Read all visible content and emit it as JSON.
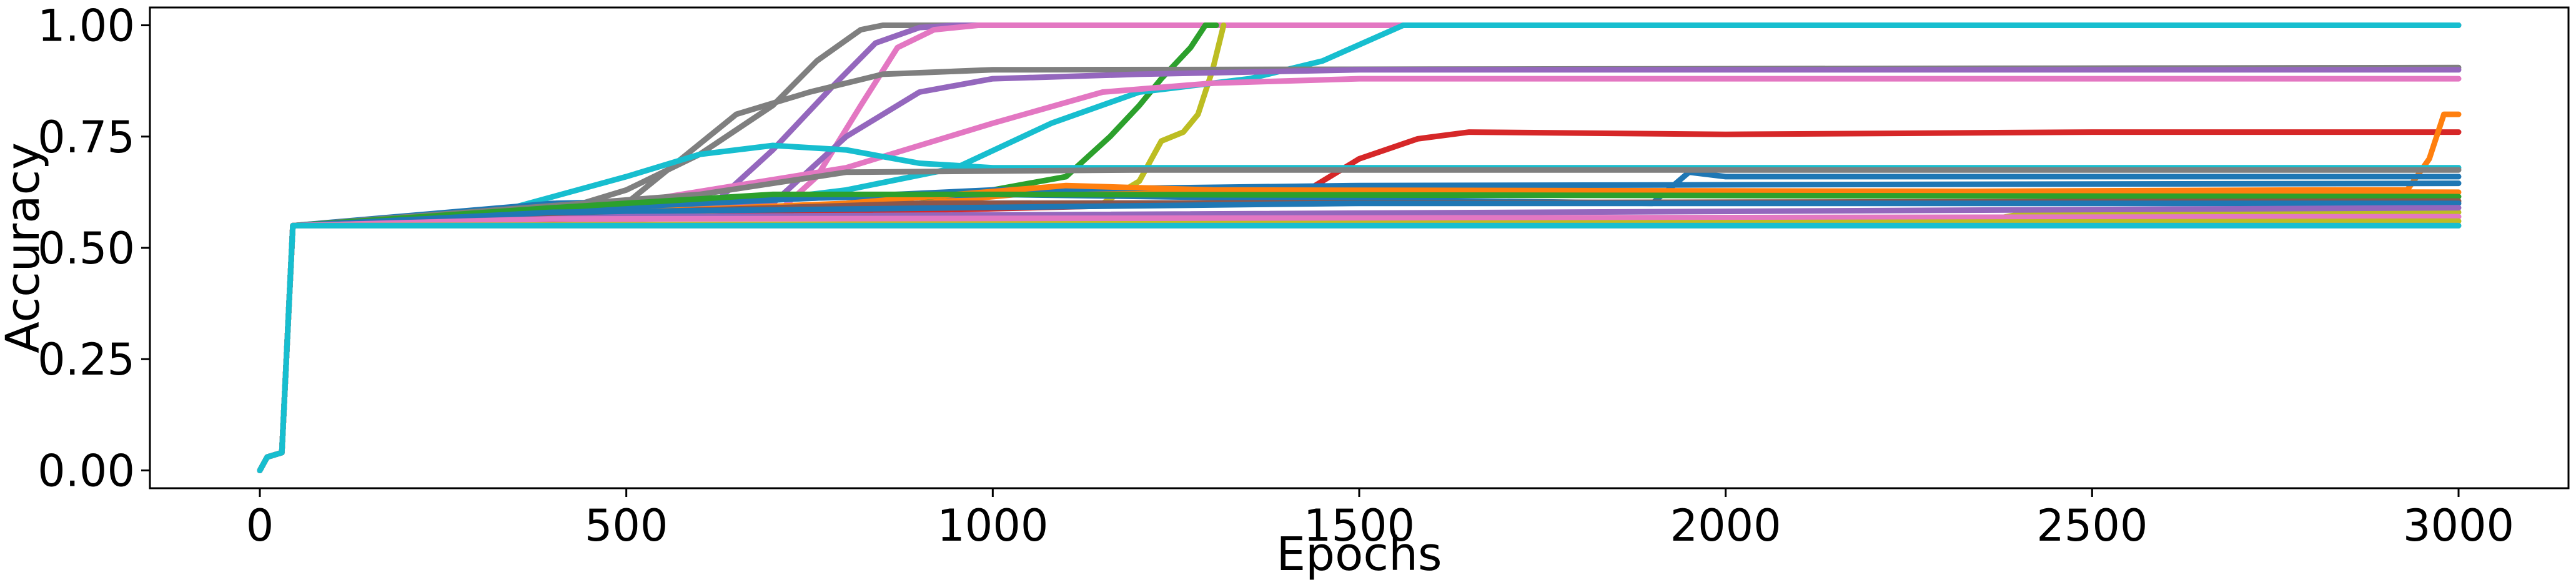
{
  "chart_data": {
    "type": "line",
    "title": "",
    "xlabel": "Epochs",
    "ylabel": "Accuracy",
    "xlim": [
      -150,
      3150
    ],
    "ylim": [
      -0.04,
      1.04
    ],
    "x_ticks": [
      0,
      500,
      1000,
      1500,
      2000,
      2500,
      3000
    ],
    "x_tick_labels": [
      "0",
      "500",
      "1000",
      "1500",
      "2000",
      "2500",
      "3000"
    ],
    "y_ticks": [
      0.0,
      0.25,
      0.5,
      0.75,
      1.0
    ],
    "y_tick_labels": [
      "0.00",
      "0.25",
      "0.50",
      "0.75",
      "1.00"
    ],
    "grid": false,
    "legend": "none",
    "series": [
      {
        "color": "#7f7f7f",
        "points": [
          [
            0,
            0
          ],
          [
            10,
            0.03
          ],
          [
            30,
            0.04
          ],
          [
            45,
            0.55
          ],
          [
            300,
            0.56
          ],
          [
            400,
            0.58
          ],
          [
            500,
            0.63
          ],
          [
            600,
            0.71
          ],
          [
            700,
            0.82
          ],
          [
            760,
            0.92
          ],
          [
            820,
            0.99
          ],
          [
            850,
            1.0
          ],
          [
            3000,
            1.0
          ]
        ]
      },
      {
        "color": "#9467bd",
        "points": [
          [
            0,
            0
          ],
          [
            10,
            0.03
          ],
          [
            30,
            0.04
          ],
          [
            45,
            0.55
          ],
          [
            500,
            0.56
          ],
          [
            620,
            0.6
          ],
          [
            700,
            0.72
          ],
          [
            780,
            0.86
          ],
          [
            840,
            0.96
          ],
          [
            900,
            0.995
          ],
          [
            950,
            1.0
          ],
          [
            3000,
            1.0
          ]
        ]
      },
      {
        "color": "#e377c2",
        "points": [
          [
            0,
            0
          ],
          [
            10,
            0.03
          ],
          [
            30,
            0.04
          ],
          [
            45,
            0.55
          ],
          [
            700,
            0.57
          ],
          [
            760,
            0.66
          ],
          [
            820,
            0.82
          ],
          [
            870,
            0.95
          ],
          [
            920,
            0.99
          ],
          [
            980,
            1.0
          ],
          [
            3000,
            1.0
          ]
        ]
      },
      {
        "color": "#2ca02c",
        "points": [
          [
            0,
            0
          ],
          [
            10,
            0.03
          ],
          [
            30,
            0.04
          ],
          [
            45,
            0.55
          ],
          [
            900,
            0.6
          ],
          [
            1100,
            0.66
          ],
          [
            1160,
            0.75
          ],
          [
            1200,
            0.82
          ],
          [
            1230,
            0.88
          ],
          [
            1270,
            0.95
          ],
          [
            1290,
            1.0
          ],
          [
            1305,
            1.0
          ]
        ]
      },
      {
        "color": "#bcbd22",
        "points": [
          [
            0,
            0
          ],
          [
            10,
            0.03
          ],
          [
            30,
            0.04
          ],
          [
            45,
            0.55
          ],
          [
            1150,
            0.6
          ],
          [
            1200,
            0.65
          ],
          [
            1230,
            0.74
          ],
          [
            1260,
            0.76
          ],
          [
            1280,
            0.8
          ],
          [
            1300,
            0.9
          ],
          [
            1315,
            1.0
          ]
        ]
      },
      {
        "color": "#17becf",
        "points": [
          [
            0,
            0
          ],
          [
            10,
            0.03
          ],
          [
            30,
            0.04
          ],
          [
            45,
            0.55
          ],
          [
            650,
            0.6
          ],
          [
            800,
            0.63
          ],
          [
            950,
            0.68
          ],
          [
            1080,
            0.78
          ],
          [
            1200,
            0.85
          ],
          [
            1350,
            0.88
          ],
          [
            1450,
            0.92
          ],
          [
            1560,
            1.0
          ],
          [
            3000,
            1.0
          ]
        ]
      },
      {
        "color": "#7f7f7f",
        "points": [
          [
            0,
            0
          ],
          [
            10,
            0.03
          ],
          [
            30,
            0.04
          ],
          [
            45,
            0.55
          ],
          [
            500,
            0.6
          ],
          [
            650,
            0.8
          ],
          [
            750,
            0.85
          ],
          [
            850,
            0.89
          ],
          [
            1000,
            0.9
          ],
          [
            3000,
            0.905
          ]
        ]
      },
      {
        "color": "#9467bd",
        "points": [
          [
            0,
            0
          ],
          [
            10,
            0.03
          ],
          [
            30,
            0.04
          ],
          [
            45,
            0.55
          ],
          [
            700,
            0.6
          ],
          [
            800,
            0.75
          ],
          [
            900,
            0.85
          ],
          [
            1000,
            0.88
          ],
          [
            1200,
            0.89
          ],
          [
            1500,
            0.9
          ],
          [
            3000,
            0.9
          ]
        ]
      },
      {
        "color": "#e377c2",
        "points": [
          [
            0,
            0
          ],
          [
            10,
            0.03
          ],
          [
            30,
            0.04
          ],
          [
            45,
            0.55
          ],
          [
            500,
            0.6
          ],
          [
            800,
            0.68
          ],
          [
            1000,
            0.78
          ],
          [
            1150,
            0.85
          ],
          [
            1300,
            0.87
          ],
          [
            1500,
            0.88
          ],
          [
            3000,
            0.88
          ]
        ]
      },
      {
        "color": "#d62728",
        "points": [
          [
            0,
            0
          ],
          [
            10,
            0.03
          ],
          [
            30,
            0.04
          ],
          [
            45,
            0.55
          ],
          [
            1300,
            0.6
          ],
          [
            1420,
            0.62
          ],
          [
            1500,
            0.7
          ],
          [
            1580,
            0.745
          ],
          [
            1650,
            0.76
          ],
          [
            2000,
            0.755
          ],
          [
            2500,
            0.76
          ],
          [
            3000,
            0.76
          ]
        ]
      },
      {
        "color": "#ff7f0e",
        "points": [
          [
            0,
            0
          ],
          [
            10,
            0.03
          ],
          [
            30,
            0.04
          ],
          [
            45,
            0.55
          ],
          [
            900,
            0.6
          ],
          [
            1100,
            0.63
          ],
          [
            1300,
            0.62
          ],
          [
            2800,
            0.63
          ],
          [
            2930,
            0.63
          ],
          [
            2960,
            0.7
          ],
          [
            2980,
            0.8
          ],
          [
            3000,
            0.8
          ]
        ]
      },
      {
        "color": "#17becf",
        "points": [
          [
            0,
            0
          ],
          [
            10,
            0.03
          ],
          [
            30,
            0.04
          ],
          [
            45,
            0.55
          ],
          [
            300,
            0.57
          ],
          [
            500,
            0.66
          ],
          [
            600,
            0.71
          ],
          [
            700,
            0.73
          ],
          [
            800,
            0.72
          ],
          [
            900,
            0.69
          ],
          [
            1000,
            0.68
          ],
          [
            1500,
            0.68
          ],
          [
            3000,
            0.68
          ]
        ]
      },
      {
        "color": "#1f77b4",
        "points": [
          [
            0,
            0
          ],
          [
            10,
            0.03
          ],
          [
            30,
            0.04
          ],
          [
            45,
            0.55
          ],
          [
            400,
            0.6
          ],
          [
            1000,
            0.62
          ],
          [
            1900,
            0.6
          ],
          [
            1950,
            0.67
          ],
          [
            2000,
            0.66
          ],
          [
            3000,
            0.66
          ]
        ]
      },
      {
        "color": "#7f7f7f",
        "points": [
          [
            0,
            0
          ],
          [
            10,
            0.03
          ],
          [
            30,
            0.04
          ],
          [
            45,
            0.55
          ],
          [
            600,
            0.62
          ],
          [
            800,
            0.67
          ],
          [
            1200,
            0.675
          ],
          [
            3000,
            0.675
          ]
        ]
      },
      {
        "color": "#1f77b4",
        "points": [
          [
            0,
            0
          ],
          [
            10,
            0.03
          ],
          [
            30,
            0.04
          ],
          [
            45,
            0.55
          ],
          [
            600,
            0.6
          ],
          [
            1000,
            0.63
          ],
          [
            1500,
            0.64
          ],
          [
            3000,
            0.645
          ]
        ]
      },
      {
        "color": "#ff7f0e",
        "points": [
          [
            0,
            0
          ],
          [
            10,
            0.03
          ],
          [
            30,
            0.04
          ],
          [
            45,
            0.55
          ],
          [
            800,
            0.6
          ],
          [
            1100,
            0.64
          ],
          [
            1300,
            0.63
          ],
          [
            3000,
            0.625
          ]
        ]
      },
      {
        "color": "#2ca02c",
        "points": [
          [
            0,
            0
          ],
          [
            10,
            0.03
          ],
          [
            30,
            0.04
          ],
          [
            45,
            0.55
          ],
          [
            400,
            0.59
          ],
          [
            700,
            0.62
          ],
          [
            1000,
            0.62
          ],
          [
            3000,
            0.615
          ]
        ]
      },
      {
        "color": "#8c564b",
        "points": [
          [
            0,
            0
          ],
          [
            10,
            0.03
          ],
          [
            30,
            0.04
          ],
          [
            45,
            0.55
          ],
          [
            500,
            0.58
          ],
          [
            900,
            0.6
          ],
          [
            3000,
            0.605
          ]
        ]
      },
      {
        "color": "#1f77b4",
        "points": [
          [
            0,
            0
          ],
          [
            10,
            0.03
          ],
          [
            30,
            0.04
          ],
          [
            45,
            0.55
          ],
          [
            400,
            0.58
          ],
          [
            1500,
            0.6
          ],
          [
            3000,
            0.6
          ]
        ]
      },
      {
        "color": "#bcbd22",
        "points": [
          [
            0,
            0
          ],
          [
            10,
            0.03
          ],
          [
            30,
            0.04
          ],
          [
            45,
            0.55
          ],
          [
            2350,
            0.56
          ],
          [
            2400,
            0.575
          ],
          [
            3000,
            0.58
          ]
        ]
      },
      {
        "color": "#9467bd",
        "points": [
          [
            0,
            0
          ],
          [
            10,
            0.03
          ],
          [
            30,
            0.04
          ],
          [
            45,
            0.55
          ],
          [
            500,
            0.57
          ],
          [
            3000,
            0.59
          ]
        ]
      },
      {
        "color": "#e377c2",
        "points": [
          [
            0,
            0
          ],
          [
            10,
            0.03
          ],
          [
            30,
            0.04
          ],
          [
            45,
            0.55
          ],
          [
            400,
            0.565
          ],
          [
            3000,
            0.57
          ]
        ]
      },
      {
        "color": "#bcbd22",
        "points": [
          [
            0,
            0
          ],
          [
            10,
            0.03
          ],
          [
            30,
            0.04
          ],
          [
            45,
            0.55
          ],
          [
            3000,
            0.56
          ]
        ]
      },
      {
        "color": "#e377c2",
        "points": [
          [
            0,
            0
          ],
          [
            10,
            0.03
          ],
          [
            30,
            0.04
          ],
          [
            45,
            0.55
          ],
          [
            3000,
            0.55
          ]
        ]
      },
      {
        "color": "#17becf",
        "points": [
          [
            0,
            0
          ],
          [
            10,
            0.03
          ],
          [
            30,
            0.04
          ],
          [
            45,
            0.55
          ],
          [
            3000,
            0.55
          ]
        ]
      }
    ]
  }
}
